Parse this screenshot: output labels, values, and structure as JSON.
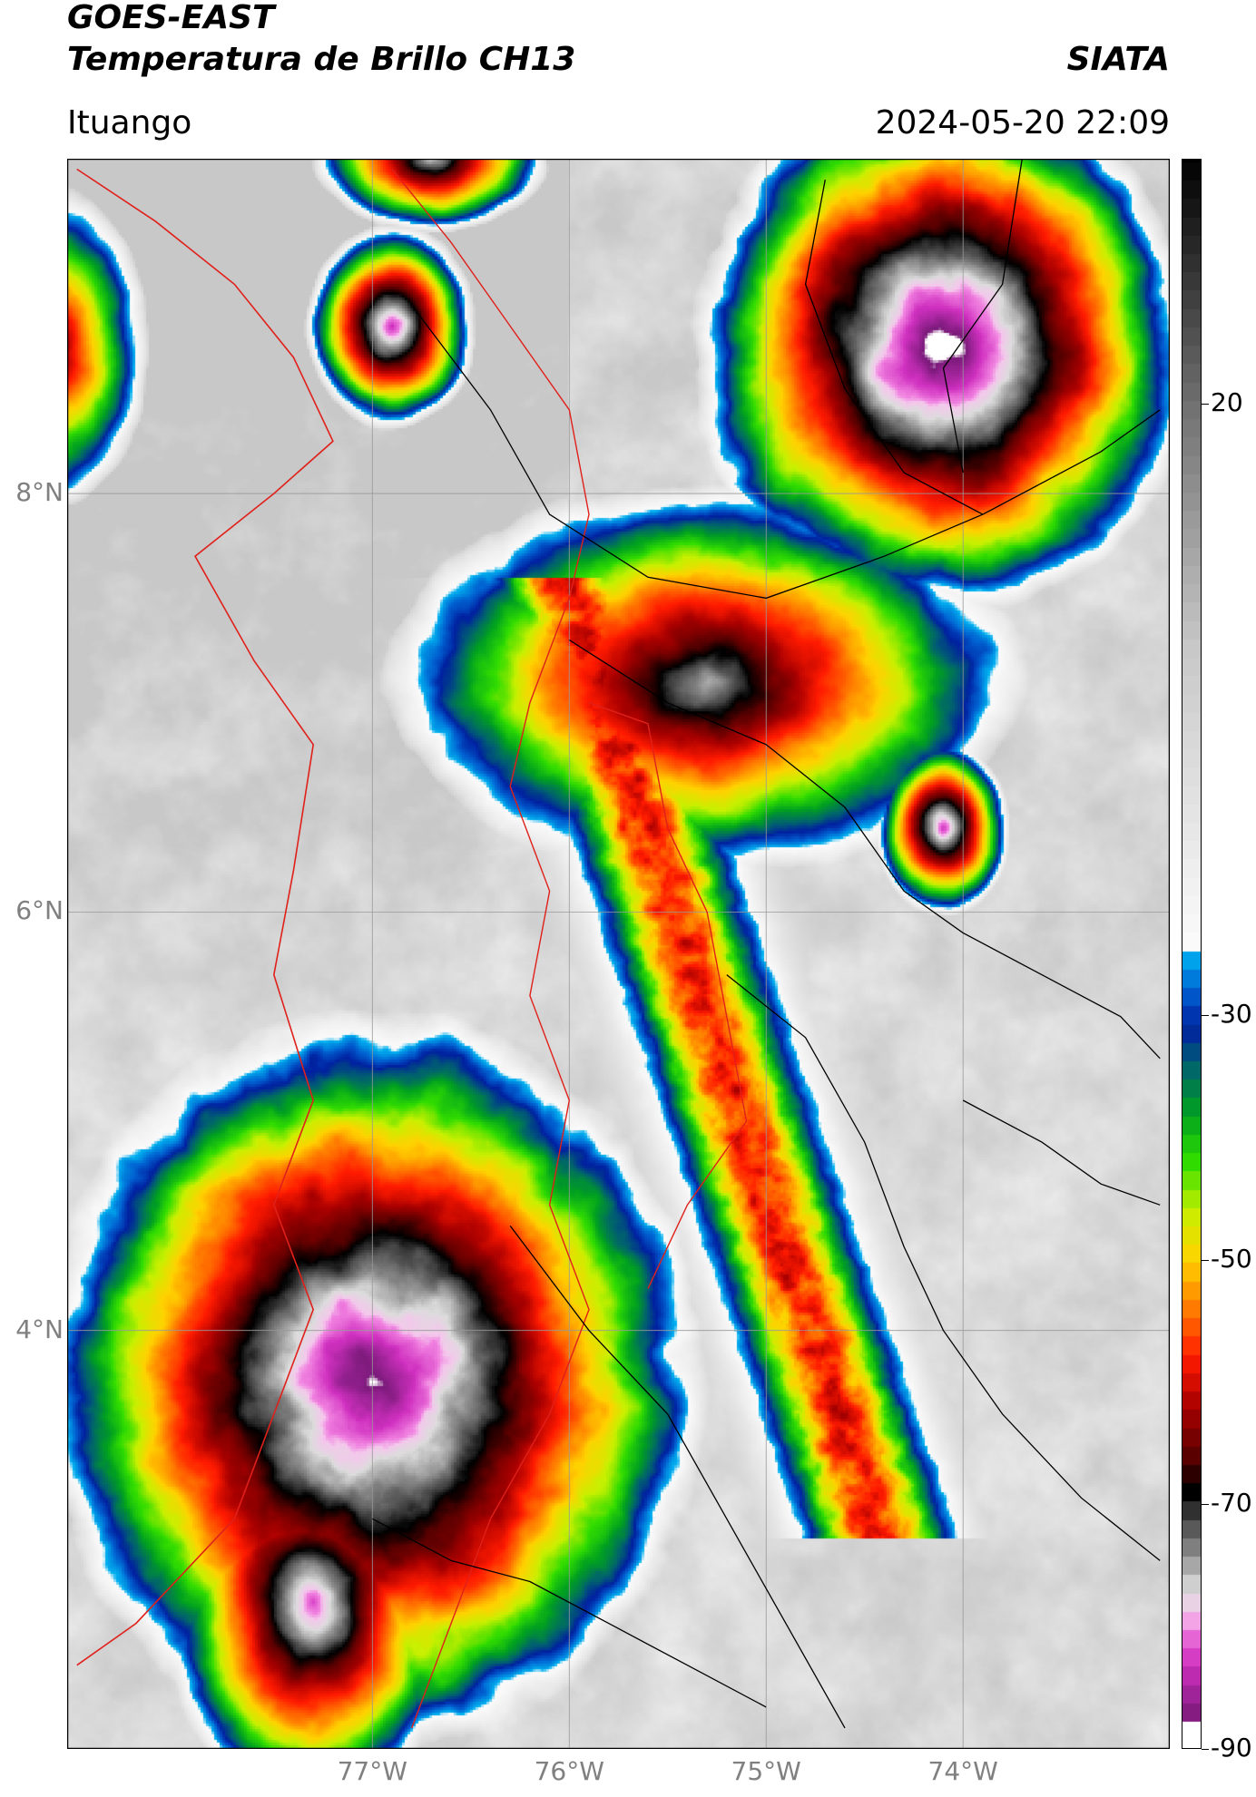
{
  "header": {
    "satellite": "GOES-EAST",
    "product": "Temperatura de Brillo CH13",
    "agency": "SIATA",
    "location": "Ituango",
    "datetime": "2024-05-20 22:09"
  },
  "map": {
    "lat_range": [
      2.0,
      9.6
    ],
    "lon_range": [
      -78.55,
      -72.95
    ],
    "lat_ticks": [
      {
        "value": 8,
        "label": "8°N"
      },
      {
        "value": 6,
        "label": "6°N"
      },
      {
        "value": 4,
        "label": "4°N"
      }
    ],
    "lon_ticks": [
      {
        "value": -77,
        "label": "77°W"
      },
      {
        "value": -76,
        "label": "76°W"
      },
      {
        "value": -75,
        "label": "75°W"
      },
      {
        "value": -74,
        "label": "74°W"
      }
    ],
    "gridlines": true,
    "colors": {
      "border_line": "#e0201a",
      "admin_line": "#000000",
      "grid": "#999999"
    }
  },
  "colorbar": {
    "range": [
      -90,
      40
    ],
    "ticks": [
      {
        "value": 20,
        "label": "20"
      },
      {
        "value": -30,
        "label": "-30"
      },
      {
        "value": -50,
        "label": "-50"
      },
      {
        "value": -70,
        "label": "-70"
      },
      {
        "value": -90,
        "label": "-90"
      }
    ],
    "scale_colors": [
      {
        "t": -90,
        "c": "#ffffff"
      },
      {
        "t": -88,
        "c": "#ffffff"
      },
      {
        "t": -87.5,
        "c": "#7a1a7a"
      },
      {
        "t": -83,
        "c": "#d030c0"
      },
      {
        "t": -80,
        "c": "#f080e0"
      },
      {
        "t": -79,
        "c": "#f4c8ec"
      },
      {
        "t": -77,
        "c": "#dcdcdc"
      },
      {
        "t": -74,
        "c": "#8c8c8c"
      },
      {
        "t": -71,
        "c": "#404040"
      },
      {
        "t": -69,
        "c": "#000000"
      },
      {
        "t": -66,
        "c": "#5a0000"
      },
      {
        "t": -62,
        "c": "#a80000"
      },
      {
        "t": -58,
        "c": "#ff1a00"
      },
      {
        "t": -54,
        "c": "#ff7a00"
      },
      {
        "t": -50,
        "c": "#ffd200"
      },
      {
        "t": -46,
        "c": "#c8f000"
      },
      {
        "t": -42,
        "c": "#30dc00"
      },
      {
        "t": -38,
        "c": "#00a020"
      },
      {
        "t": -34,
        "c": "#006070"
      },
      {
        "t": -31,
        "c": "#0020a0"
      },
      {
        "t": -28,
        "c": "#0060d0"
      },
      {
        "t": -25,
        "c": "#00b0f0"
      },
      {
        "t": -24,
        "c": "#fafafa"
      },
      {
        "t": 0,
        "c": "#c8c8c8"
      },
      {
        "t": 20,
        "c": "#707070"
      },
      {
        "t": 40,
        "c": "#000000"
      }
    ]
  },
  "storms": [
    {
      "name": "cloud-tops-west-sw",
      "lon": -77.0,
      "lat": 3.75,
      "rx": 1.0,
      "ry": 1.05,
      "core_temp": -84
    },
    {
      "name": "cloud-tops-southwest-tail",
      "lon": -77.3,
      "lat": 2.7,
      "rx": 0.45,
      "ry": 0.6,
      "core_temp": -76
    },
    {
      "name": "cloud-tops-northeast",
      "lon": -74.1,
      "lat": 8.7,
      "rx": 0.75,
      "ry": 0.75,
      "core_temp": -86
    },
    {
      "name": "cloud-tops-central-red",
      "lon": -75.3,
      "lat": 7.1,
      "rx": 0.95,
      "ry": 0.55,
      "core_temp": -70
    },
    {
      "name": "cloud-tops-east-small",
      "lon": -74.1,
      "lat": 6.4,
      "rx": 0.2,
      "ry": 0.25,
      "core_temp": -79
    },
    {
      "name": "cloud-tops-north-small-1",
      "lon": -76.9,
      "lat": 8.8,
      "rx": 0.25,
      "ry": 0.28,
      "core_temp": -80
    },
    {
      "name": "cloud-tops-north-small-2",
      "lon": -76.7,
      "lat": 9.6,
      "rx": 0.35,
      "ry": 0.2,
      "core_temp": -73
    },
    {
      "name": "cloud-tops-west-edge",
      "lon": -78.65,
      "lat": 8.7,
      "rx": 0.3,
      "ry": 0.45,
      "core_temp": -66
    }
  ]
}
